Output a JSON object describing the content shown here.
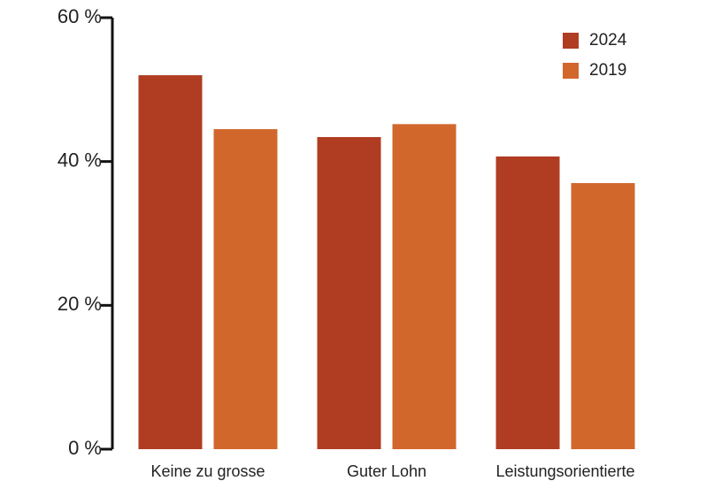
{
  "chart_data": {
    "type": "bar",
    "categories": [
      "Keine zu grosse",
      "Guter Lohn",
      "Leistungsorientierte"
    ],
    "series": [
      {
        "name": "2024",
        "color": "#b03c22",
        "values": [
          52,
          43.4,
          40.7
        ]
      },
      {
        "name": "2019",
        "color": "#d2672c",
        "values": [
          44.5,
          45.2,
          37
        ]
      }
    ],
    "ylim": [
      0,
      60
    ],
    "yticks": [
      {
        "value": 0,
        "label": "0 %"
      },
      {
        "value": 20,
        "label": "20 %"
      },
      {
        "value": 40,
        "label": "40 %"
      },
      {
        "value": 60,
        "label": "60 %"
      }
    ],
    "legend": "top-right"
  }
}
